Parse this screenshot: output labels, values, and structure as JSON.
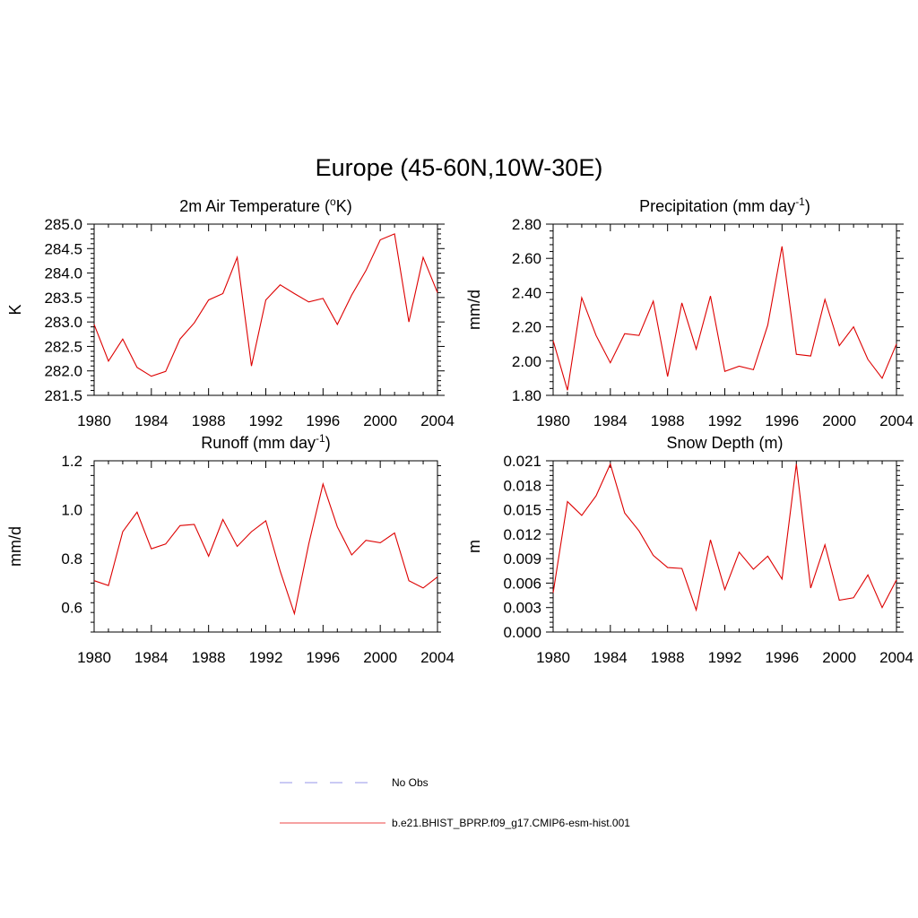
{
  "figure": {
    "title": "Europe (45-60N,10W-30E)"
  },
  "legend": {
    "items": [
      {
        "label": "No Obs",
        "style": "dashed",
        "color": "#aaaaee"
      },
      {
        "label": "b.e21.BHIST_BPRP.f09_g17.CMIP6-esm-hist.001",
        "style": "solid",
        "color": "#ee4444"
      }
    ]
  },
  "chart_data": [
    {
      "type": "line",
      "title": "2m Air Temperature (°K)",
      "title_base": "2m Air Temperature (",
      "title_sup": "o",
      "title_end": "K)",
      "ylabel": "K",
      "xlim": [
        1980,
        2004
      ],
      "ylim": [
        281.5,
        285.0
      ],
      "xticks": [
        1980,
        1984,
        1988,
        1992,
        1996,
        2000,
        2004
      ],
      "yticks": [
        "281.5",
        "282.0",
        "282.5",
        "283.0",
        "283.5",
        "284.0",
        "284.5",
        "285.0"
      ],
      "color": "#dd0000",
      "x": [
        1980,
        1981,
        1982,
        1983,
        1984,
        1985,
        1986,
        1987,
        1988,
        1989,
        1990,
        1991,
        1992,
        1993,
        1994,
        1995,
        1996,
        1997,
        1998,
        1999,
        2000,
        2001,
        2002,
        2003,
        2004
      ],
      "values": [
        282.95,
        282.2,
        282.65,
        282.07,
        281.89,
        281.99,
        282.65,
        282.98,
        283.45,
        283.58,
        284.32,
        282.1,
        283.45,
        283.76,
        283.58,
        283.41,
        283.48,
        282.95,
        283.55,
        284.05,
        284.68,
        284.8,
        283.0,
        284.32,
        283.6
      ]
    },
    {
      "type": "line",
      "title": "Precipitation (mm day-1)",
      "title_base": "Precipitation (mm day",
      "title_sup": "-1",
      "title_end": ")",
      "ylabel": "mm/d",
      "xlim": [
        1980,
        2004
      ],
      "ylim": [
        1.8,
        2.8
      ],
      "xticks": [
        1980,
        1984,
        1988,
        1992,
        1996,
        2000,
        2004
      ],
      "yticks": [
        "1.80",
        "2.00",
        "2.20",
        "2.40",
        "2.60",
        "2.80"
      ],
      "color": "#dd0000",
      "x": [
        1980,
        1981,
        1982,
        1983,
        1984,
        1985,
        1986,
        1987,
        1988,
        1989,
        1990,
        1991,
        1992,
        1993,
        1994,
        1995,
        1996,
        1997,
        1998,
        1999,
        2000,
        2001,
        2002,
        2003,
        2004
      ],
      "values": [
        2.12,
        1.83,
        2.37,
        2.15,
        1.99,
        2.16,
        2.15,
        2.35,
        1.91,
        2.34,
        2.07,
        2.38,
        1.94,
        1.97,
        1.95,
        2.21,
        2.67,
        2.04,
        2.03,
        2.36,
        2.09,
        2.2,
        2.01,
        1.9,
        2.1
      ]
    },
    {
      "type": "line",
      "title": "Runoff (mm day-1)",
      "title_base": "Runoff (mm day",
      "title_sup": "-1",
      "title_end": ")",
      "ylabel": "mm/d",
      "xlim": [
        1980,
        2004
      ],
      "ylim": [
        0.5,
        1.2
      ],
      "xticks": [
        1980,
        1984,
        1988,
        1992,
        1996,
        2000,
        2004
      ],
      "yticks": [
        "0.6",
        "0.8",
        "1.0",
        "1.2"
      ],
      "color": "#dd0000",
      "x": [
        1980,
        1981,
        1982,
        1983,
        1984,
        1985,
        1986,
        1987,
        1988,
        1989,
        1990,
        1991,
        1992,
        1993,
        1994,
        1995,
        1996,
        1997,
        1998,
        1999,
        2000,
        2001,
        2002,
        2003,
        2004
      ],
      "values": [
        0.71,
        0.69,
        0.91,
        0.99,
        0.84,
        0.86,
        0.935,
        0.94,
        0.81,
        0.96,
        0.85,
        0.91,
        0.955,
        0.75,
        0.575,
        0.86,
        1.105,
        0.93,
        0.815,
        0.875,
        0.865,
        0.905,
        0.71,
        0.68,
        0.725
      ]
    },
    {
      "type": "line",
      "title": "Snow Depth (m)",
      "title_base": "Snow Depth (m)",
      "title_sup": "",
      "title_end": "",
      "ylabel": "m",
      "xlim": [
        1980,
        2004
      ],
      "ylim": [
        0.0,
        0.021
      ],
      "xticks": [
        1980,
        1984,
        1988,
        1992,
        1996,
        2000,
        2004
      ],
      "yticks": [
        "0.000",
        "0.003",
        "0.006",
        "0.009",
        "0.012",
        "0.015",
        "0.018",
        "0.021"
      ],
      "color": "#dd0000",
      "x": [
        1980,
        1981,
        1982,
        1983,
        1984,
        1985,
        1986,
        1987,
        1988,
        1989,
        1990,
        1991,
        1992,
        1993,
        1994,
        1995,
        1996,
        1997,
        1998,
        1999,
        2000,
        2001,
        2002,
        2003,
        2004
      ],
      "values": [
        0.0048,
        0.016,
        0.0143,
        0.0167,
        0.0206,
        0.0146,
        0.0124,
        0.0094,
        0.0079,
        0.0078,
        0.0027,
        0.0113,
        0.0052,
        0.0098,
        0.0077,
        0.0093,
        0.0065,
        0.0206,
        0.0054,
        0.0107,
        0.0039,
        0.0042,
        0.007,
        0.003,
        0.0064
      ]
    }
  ]
}
